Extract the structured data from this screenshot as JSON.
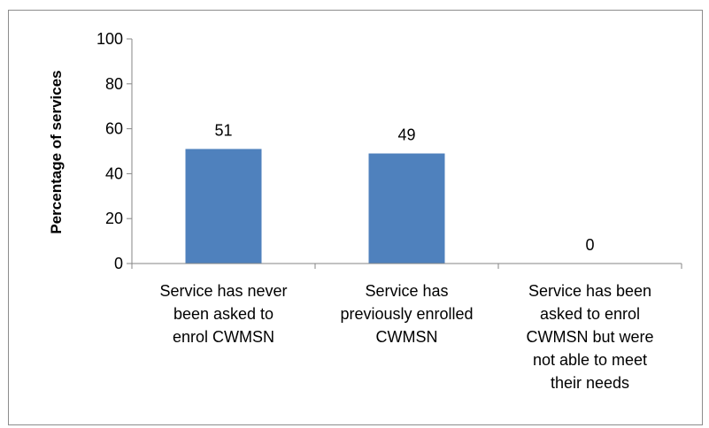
{
  "chart_data": {
    "type": "bar",
    "categories": [
      [
        "Service has never",
        "been asked to",
        "enrol CWMSN"
      ],
      [
        "Service has",
        "previously enrolled",
        "CWMSN"
      ],
      [
        "Service has been",
        "asked to enrol",
        "CWMSN but were",
        "not able to meet",
        "their needs"
      ]
    ],
    "values": [
      51,
      49,
      0
    ],
    "data_labels": [
      "51",
      "49",
      "0"
    ],
    "title": "",
    "xlabel": "",
    "ylabel": "Percentage of services",
    "ylim": [
      0,
      100
    ],
    "yticks": [
      0,
      20,
      40,
      60,
      80,
      100
    ],
    "grid": false,
    "legend": "none",
    "bar_color": "#4f81bd"
  }
}
